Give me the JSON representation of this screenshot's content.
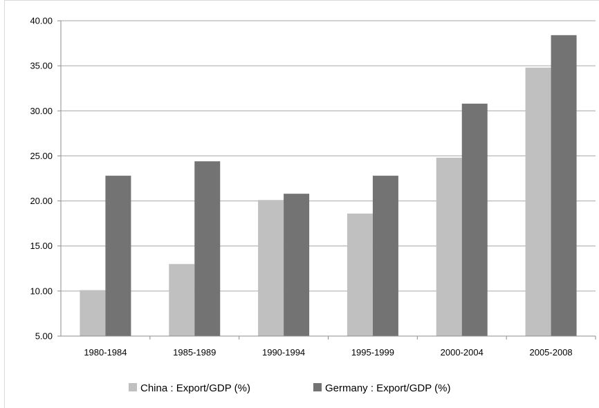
{
  "chart_data": {
    "type": "bar",
    "categories": [
      "1980-1984",
      "1985-1989",
      "1990-1994",
      "1995-1999",
      "2000-2004",
      "2005-2008"
    ],
    "series": [
      {
        "name": "China : Export/GDP (%)",
        "values": [
          10.1,
          13.0,
          20.1,
          18.6,
          24.8,
          34.8
        ],
        "color": "#c0c0c0"
      },
      {
        "name": "Germany : Export/GDP (%)",
        "values": [
          22.8,
          24.4,
          20.8,
          22.8,
          30.8,
          38.4
        ],
        "color": "#737373"
      }
    ],
    "y_ticks": [
      "5.00",
      "10.00",
      "15.00",
      "20.00",
      "25.00",
      "30.00",
      "35.00",
      "40.00"
    ],
    "ylim": [
      5,
      40
    ],
    "grid": true,
    "legend_position": "bottom",
    "colors": {
      "gridline": "#a6a6a6",
      "axis": "#8c8c8c"
    }
  }
}
